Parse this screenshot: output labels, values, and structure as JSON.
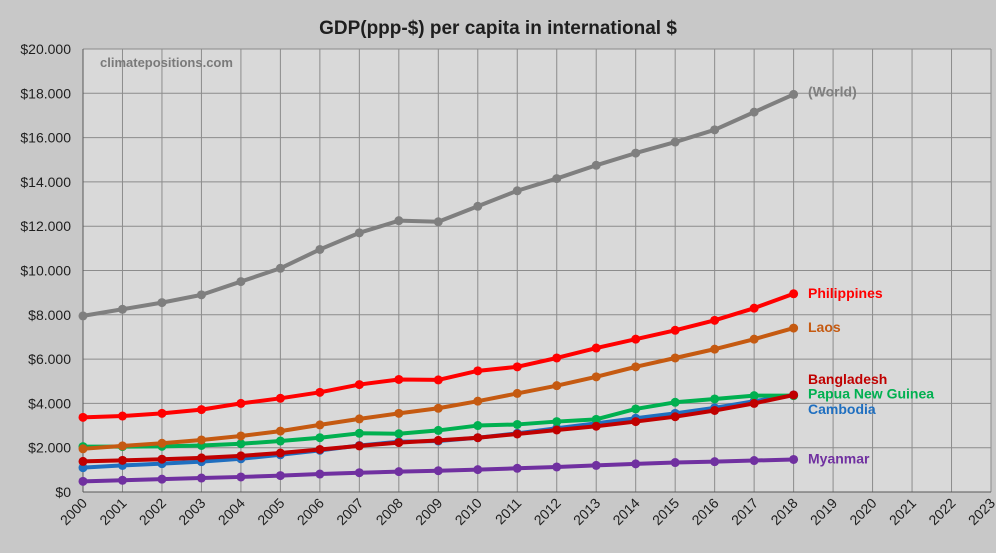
{
  "chart_data": {
    "type": "line",
    "title": "GDP(ppp-$) per capita in international $",
    "watermark": "climatepositions.com",
    "xlabel": "",
    "ylabel": "",
    "xlim": [
      2000,
      2023
    ],
    "ylim": [
      0,
      20000
    ],
    "grid": true,
    "legend": "labels at line ends",
    "x": [
      2000,
      2001,
      2002,
      2003,
      2004,
      2005,
      2006,
      2007,
      2008,
      2009,
      2010,
      2011,
      2012,
      2013,
      2014,
      2015,
      2016,
      2017,
      2018
    ],
    "x_tick_labels": [
      "2000",
      "2001",
      "2002",
      "2003",
      "2004",
      "2005",
      "2006",
      "2007",
      "2008",
      "2009",
      "2010",
      "2011",
      "2012",
      "2013",
      "2014",
      "2015",
      "2016",
      "2017",
      "2018",
      "2019",
      "2020",
      "2021",
      "2022",
      "2023"
    ],
    "y_tick_values": [
      0,
      2000,
      4000,
      6000,
      8000,
      10000,
      12000,
      14000,
      16000,
      18000,
      20000
    ],
    "y_tick_labels": [
      "$0",
      "$2.000",
      "$4.000",
      "$6.000",
      "$8.000",
      "$10.000",
      "$12.000",
      "$14.000",
      "$16.000",
      "$18.000",
      "$20.000"
    ],
    "series": [
      {
        "name": "(World)",
        "color": "#7f7f7f",
        "values": [
          7950,
          8250,
          8550,
          8900,
          9500,
          10100,
          10950,
          11700,
          12250,
          12200,
          12900,
          13600,
          14150,
          14750,
          15300,
          15800,
          16350,
          17150,
          17950
        ]
      },
      {
        "name": "Myanmar",
        "color": "#7030a0",
        "values": [
          480,
          530,
          580,
          630,
          680,
          740,
          810,
          870,
          920,
          960,
          1010,
          1070,
          1130,
          1200,
          1270,
          1330,
          1370,
          1420,
          1470
        ]
      },
      {
        "name": "Cambodia",
        "color": "#1f6fc0",
        "values": [
          1100,
          1200,
          1280,
          1370,
          1500,
          1680,
          1880,
          2100,
          2270,
          2300,
          2450,
          2650,
          2880,
          3100,
          3330,
          3550,
          3800,
          4100,
          4380
        ]
      },
      {
        "name": "Papua New Guinea",
        "color": "#00b050",
        "values": [
          2050,
          2050,
          2060,
          2100,
          2180,
          2300,
          2450,
          2650,
          2630,
          2780,
          3000,
          3050,
          3180,
          3280,
          3750,
          4050,
          4200,
          4350,
          4350
        ]
      },
      {
        "name": "Laos",
        "color": "#c55a11",
        "values": [
          1950,
          2080,
          2200,
          2350,
          2530,
          2750,
          3030,
          3300,
          3550,
          3780,
          4100,
          4450,
          4800,
          5200,
          5650,
          6050,
          6450,
          6900,
          7400
        ]
      },
      {
        "name": "Bangladesh",
        "color": "#c00000",
        "values": [
          1380,
          1430,
          1480,
          1540,
          1630,
          1760,
          1920,
          2080,
          2230,
          2330,
          2450,
          2620,
          2800,
          2970,
          3180,
          3400,
          3680,
          4000,
          4380
        ]
      },
      {
        "name": "Philippines",
        "color": "#ff0000",
        "values": [
          3370,
          3430,
          3550,
          3720,
          4000,
          4230,
          4500,
          4850,
          5080,
          5060,
          5470,
          5650,
          6050,
          6500,
          6900,
          7300,
          7750,
          8300,
          8950
        ]
      }
    ]
  }
}
